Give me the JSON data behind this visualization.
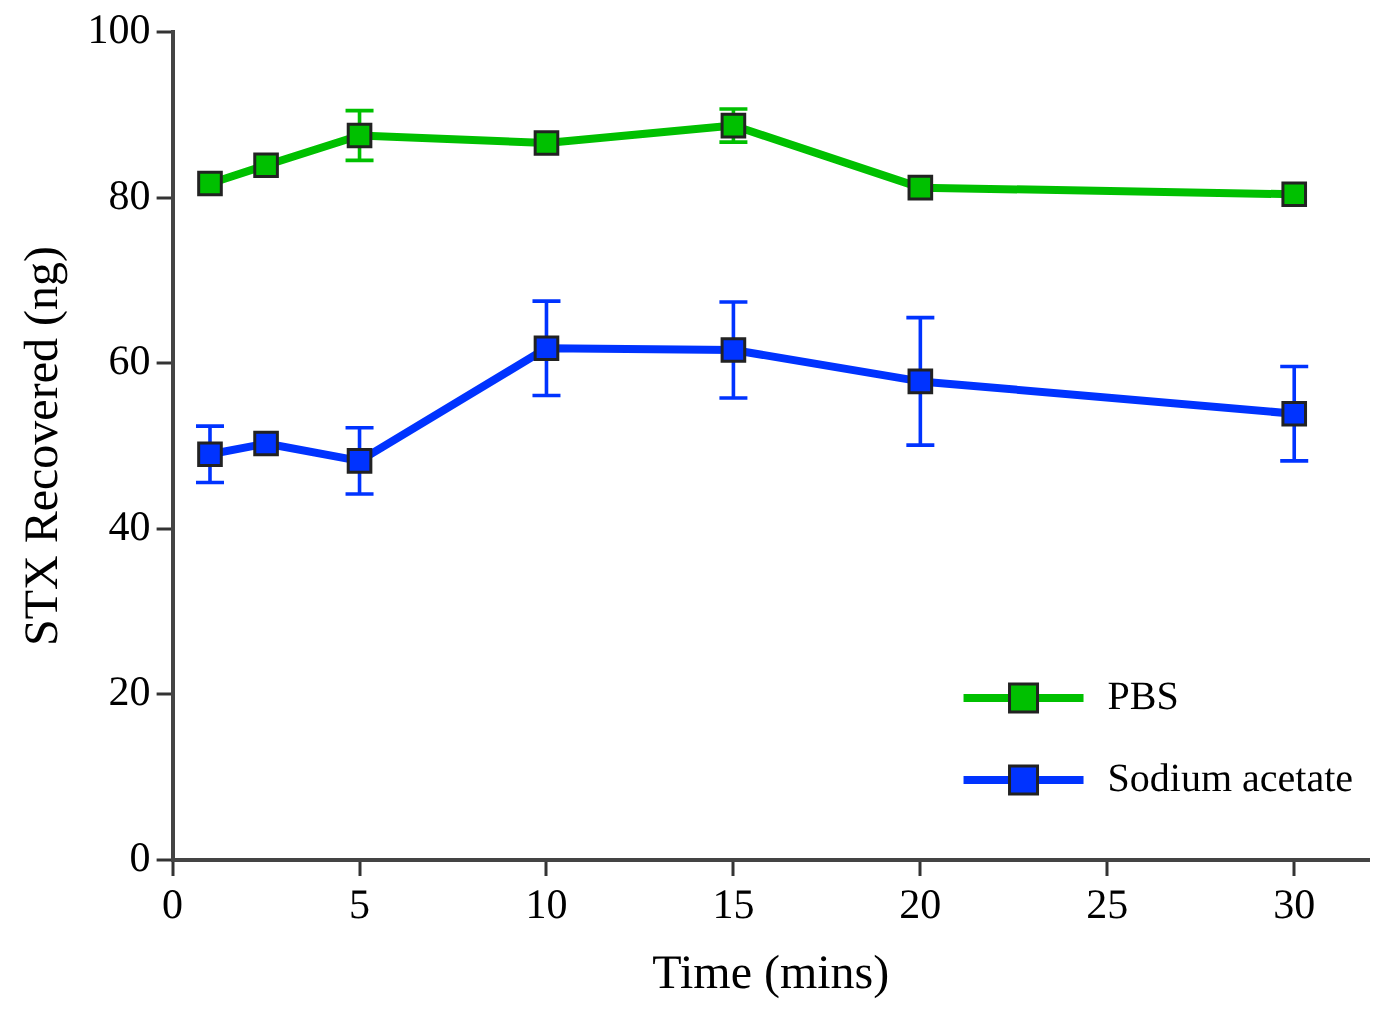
{
  "chart_data": {
    "type": "line",
    "xlabel": "Time (mins)",
    "ylabel": "STX Recovered (ng)",
    "x": [
      1,
      2.5,
      5,
      10,
      15,
      20,
      30
    ],
    "series": [
      {
        "name": "PBS",
        "color": "#00c000",
        "values": [
          81.7,
          83.9,
          87.5,
          86.6,
          88.7,
          81.2,
          80.4
        ],
        "errors": [
          null,
          null,
          3,
          null,
          2,
          null,
          null
        ]
      },
      {
        "name": "Sodium acetate",
        "color": "#0033ff",
        "values": [
          49.0,
          50.3,
          48.2,
          61.8,
          61.6,
          57.8,
          53.9
        ],
        "errors": [
          3.4,
          null,
          4,
          5.7,
          5.8,
          7.7,
          5.7
        ]
      }
    ],
    "xlim": [
      0,
      32
    ],
    "xticks": [
      0,
      5,
      10,
      15,
      20,
      25,
      30
    ],
    "ylim": [
      0,
      100
    ],
    "yticks": [
      0,
      20,
      40,
      60,
      80,
      100
    ],
    "grid": false,
    "legend": "bottom right",
    "marker": "square",
    "line_style": "solid"
  }
}
